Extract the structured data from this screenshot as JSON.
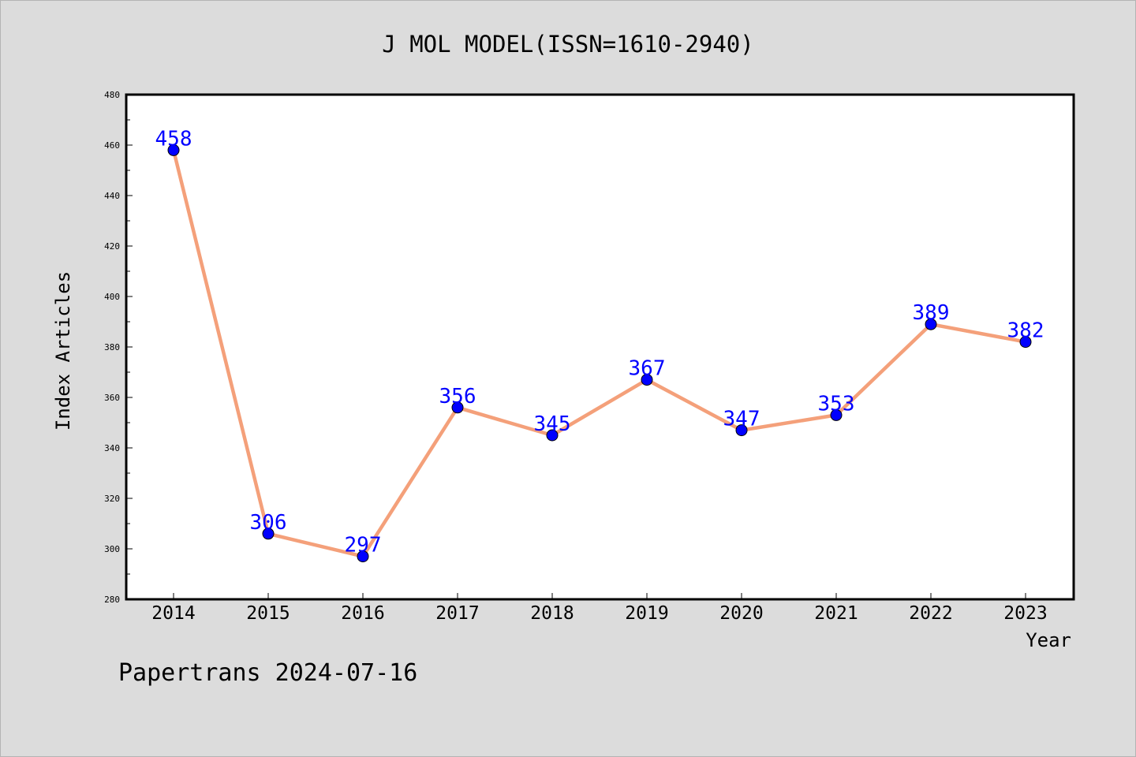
{
  "chart_data": {
    "type": "line",
    "title": "J MOL MODEL(ISSN=1610-2940)",
    "xlabel": "Year",
    "ylabel": "Index Articles",
    "categories": [
      "2014",
      "2015",
      "2016",
      "2017",
      "2018",
      "2019",
      "2020",
      "2021",
      "2022",
      "2023"
    ],
    "values": [
      458,
      306,
      297,
      356,
      345,
      367,
      347,
      353,
      389,
      382
    ],
    "ylim": [
      280,
      480
    ],
    "y_ticks": [
      280,
      300,
      320,
      340,
      360,
      380,
      400,
      420,
      440,
      460,
      480
    ],
    "grid": false,
    "line_color": "#f4a07a",
    "marker_color": "#0000ff",
    "label_color": "#0000ff"
  },
  "footer": "Papertrans 2024-07-16"
}
